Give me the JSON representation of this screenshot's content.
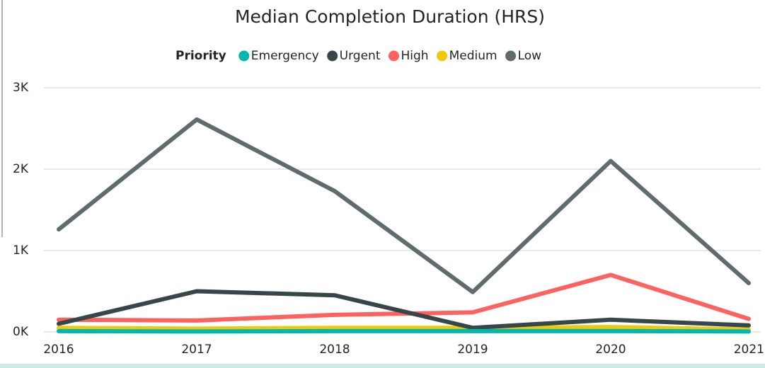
{
  "chart_data": {
    "type": "line",
    "title": "Median Completion Duration (HRS)",
    "legend_title": "Priority",
    "legend": "top",
    "grid": true,
    "categories": [
      "2016",
      "2017",
      "2018",
      "2019",
      "2020",
      "2021"
    ],
    "ylim": [
      0,
      3000
    ],
    "yticks": [
      {
        "value": 0,
        "label": "0K"
      },
      {
        "value": 1000,
        "label": "1K"
      },
      {
        "value": 2000,
        "label": "2K"
      },
      {
        "value": 3000,
        "label": "3K"
      }
    ],
    "series": [
      {
        "name": "Emergency",
        "color": "#01B8AA",
        "values": [
          10,
          5,
          10,
          10,
          10,
          5
        ]
      },
      {
        "name": "Urgent",
        "color": "#374649",
        "values": [
          100,
          500,
          450,
          50,
          150,
          80
        ]
      },
      {
        "name": "High",
        "color": "#FD625E",
        "values": [
          150,
          140,
          210,
          240,
          700,
          160
        ]
      },
      {
        "name": "Medium",
        "color": "#F2C80F",
        "values": [
          50,
          40,
          50,
          50,
          60,
          30
        ]
      },
      {
        "name": "Low",
        "color": "#5F6B6D",
        "values": [
          1260,
          2610,
          1730,
          490,
          2100,
          600
        ]
      }
    ]
  }
}
